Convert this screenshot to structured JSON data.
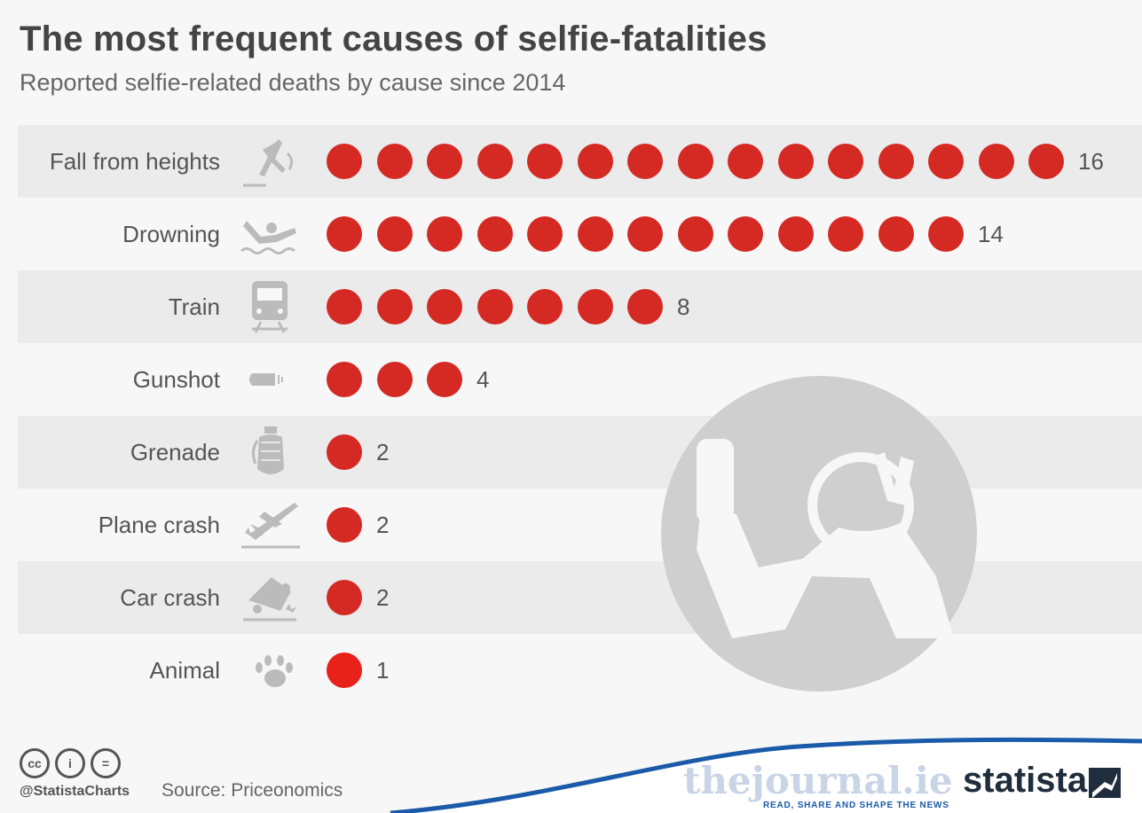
{
  "chart_data": {
    "type": "pictogram-bar",
    "title": "The most frequent causes of selfie-fatalities",
    "subtitle": "Reported selfie-related deaths by cause since 2014",
    "categories": [
      "Fall from heights",
      "Drowning",
      "Train",
      "Gunshot",
      "Grenade",
      "Plane crash",
      "Car crash",
      "Animal"
    ],
    "values": [
      16,
      14,
      8,
      4,
      2,
      2,
      2,
      1
    ],
    "icons": [
      "falling-person-icon",
      "drowning-person-icon",
      "train-icon",
      "bullet-icon",
      "grenade-icon",
      "plane-crash-icon",
      "car-crash-icon",
      "paw-print-icon"
    ],
    "dot_color": "#d42a23",
    "last_dot_color": "#e8211b"
  },
  "footer": {
    "handle": "@StatistaCharts",
    "source": "Source: Priceonomics",
    "journal_name": "thejournal.ie",
    "journal_tagline": "READ, SHARE AND SHAPE THE NEWS",
    "brand": "statista",
    "cc_labels": [
      "cc",
      "i",
      "="
    ]
  }
}
